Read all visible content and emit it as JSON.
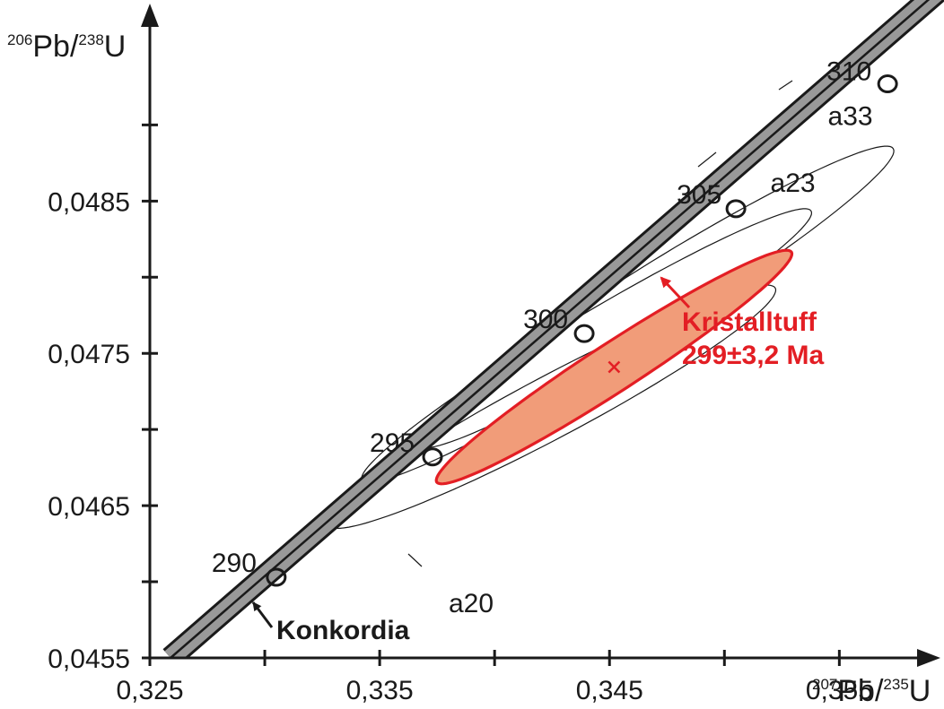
{
  "chart_data": {
    "type": "scatter",
    "title": "",
    "xlabel": {
      "sup1": "207",
      "base1": "Pb/",
      "sup2": "235",
      "base2": "U"
    },
    "ylabel": {
      "sup1": "206",
      "base1": "Pb/",
      "sup2": "238",
      "base2": "U"
    },
    "xlim": [
      0.325,
      0.3585
    ],
    "ylim": [
      0.0455,
      0.04975
    ],
    "x_ticks": [
      0.325,
      0.33,
      0.335,
      0.34,
      0.345,
      0.35,
      0.355
    ],
    "x_tick_labels": [
      "0,325",
      "0,335",
      "0,345",
      "0,355"
    ],
    "x_tick_label_values": [
      0.325,
      0.335,
      0.345,
      0.355
    ],
    "y_ticks": [
      0.0455,
      0.046,
      0.0465,
      0.047,
      0.0475,
      0.048,
      0.0485,
      0.049
    ],
    "y_tick_labels": [
      "0,0455",
      "0,0465",
      "0,0475",
      "0,0485"
    ],
    "y_tick_label_values": [
      0.0455,
      0.0465,
      0.0475,
      0.0485
    ],
    "concordia": {
      "label": "Konkordia",
      "start": [
        0.3259,
        0.0455
      ],
      "end": [
        0.35985,
        0.04995
      ],
      "color": "#999999",
      "age_points": [
        {
          "age": "290",
          "x": 0.3305,
          "y": 0.04603
        },
        {
          "age": "295",
          "x": 0.3373,
          "y": 0.04682
        },
        {
          "age": "300",
          "x": 0.3439,
          "y": 0.04763
        },
        {
          "age": "305",
          "x": 0.3505,
          "y": 0.04845
        },
        {
          "age": "310",
          "x": 0.3571,
          "y": 0.04927
        }
      ]
    },
    "error_ellipses": [
      {
        "name": "a20",
        "cx": 0.3425,
        "cy": 0.04715,
        "a": 0.011,
        "b": 0.00135,
        "angle_deg": 28,
        "label_anchor": [
          0.338,
          0.0458
        ]
      },
      {
        "name": "a23",
        "cx": 0.344,
        "cy": 0.04755,
        "a": 0.0114,
        "b": 0.00125,
        "angle_deg": 31,
        "label_anchor": [
          0.352,
          0.04856
        ]
      },
      {
        "name": "a33",
        "cx": 0.347,
        "cy": 0.04787,
        "a": 0.0122,
        "b": 0.0014,
        "angle_deg": 32,
        "label_anchor": [
          0.3545,
          0.049
        ]
      }
    ],
    "result": {
      "name": "Kristalltuff",
      "age_text": "299±3,2 Ma",
      "cx": 0.3452,
      "cy": 0.04741,
      "a": 0.0092,
      "b": 0.00105,
      "angle_deg": 33,
      "fill_color": "#f19c79",
      "stroke_color": "#e31e24"
    },
    "grid": false,
    "legend": "none"
  }
}
